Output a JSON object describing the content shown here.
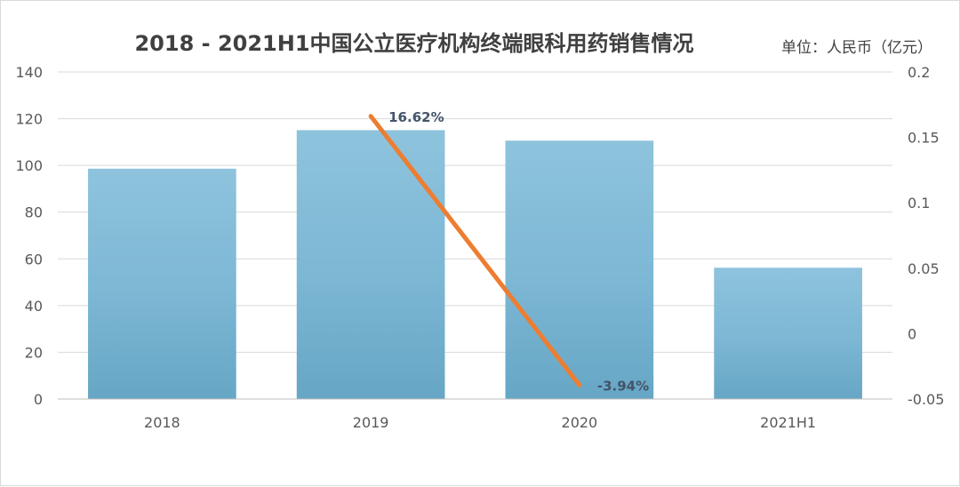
{
  "chart_data": {
    "type": "bar+line",
    "title": "2018 - 2021H1中国公立医疗机构终端眼科用药销售情况",
    "unit_label": "单位：人民币（亿元）",
    "categories": [
      "2018",
      "2019",
      "2020",
      "2021H1"
    ],
    "series": [
      {
        "type": "bar",
        "axis": "left",
        "values": [
          98.6,
          115.1,
          110.6,
          56.2
        ],
        "color": "#7fb9d6"
      },
      {
        "type": "line",
        "axis": "right",
        "values": [
          null,
          0.1662,
          -0.0394,
          null
        ],
        "color": "#ed7d31"
      }
    ],
    "line_data_labels": [
      "",
      "16.62%",
      "-3.94%",
      ""
    ],
    "y_left": {
      "ticks": [
        "0",
        "20",
        "40",
        "60",
        "80",
        "100",
        "120",
        "140"
      ],
      "range": [
        0,
        140
      ]
    },
    "y_right": {
      "ticks": [
        "-0.05",
        "0",
        "0.05",
        "0.1",
        "0.15",
        "0.2"
      ],
      "range": [
        -0.05,
        0.2
      ]
    },
    "grid": true,
    "legend": "none"
  }
}
